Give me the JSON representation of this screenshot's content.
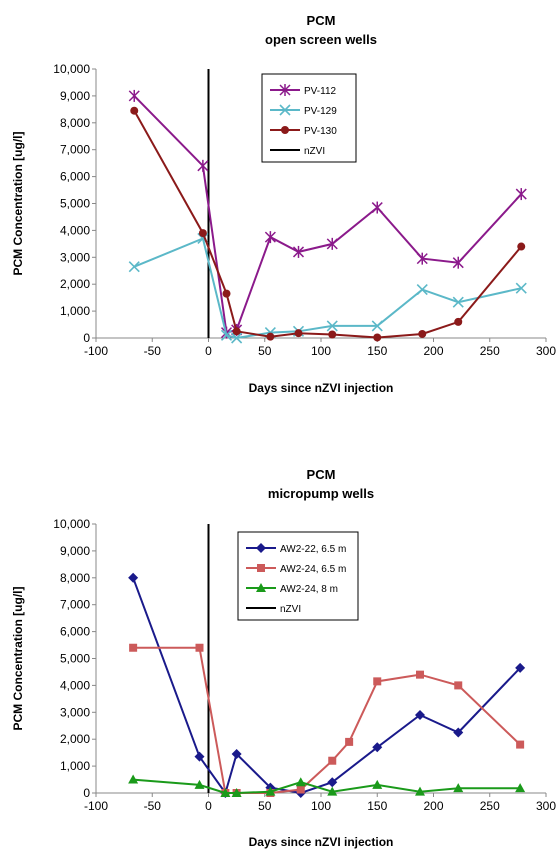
{
  "chart_data": [
    {
      "type": "line",
      "title": "PCM",
      "subtitle": "open screen wells",
      "xlabel": "Days since nZVI injection",
      "ylabel": "PCM Concentration  [ug/l]",
      "xlim": [
        -100,
        300
      ],
      "ylim": [
        0,
        10000
      ],
      "x_ticks": [
        "-100",
        "-50",
        "0",
        "50",
        "100",
        "150",
        "200",
        "250",
        "300"
      ],
      "y_ticks": [
        "0",
        "1,000",
        "2,000",
        "3,000",
        "4,000",
        "5,000",
        "6,000",
        "7,000",
        "8,000",
        "9,000",
        "10,000"
      ],
      "legend_position": "top-center",
      "grid": false,
      "vline": {
        "x": 0,
        "name": "nZVI",
        "color": "#000000"
      },
      "series": [
        {
          "name": "PV-112",
          "color": "#8B1A8B",
          "marker": "star",
          "x": [
            -66,
            -5,
            16,
            25,
            55,
            80,
            110,
            150,
            190,
            222,
            278
          ],
          "y": [
            9000,
            6400,
            200,
            300,
            3750,
            3200,
            3500,
            4850,
            2950,
            2800,
            5350
          ]
        },
        {
          "name": "PV-129",
          "color": "#5BB8C8",
          "marker": "x",
          "x": [
            -66,
            -5,
            16,
            25,
            55,
            80,
            110,
            150,
            190,
            222,
            278
          ],
          "y": [
            2650,
            3700,
            100,
            0,
            200,
            250,
            450,
            450,
            1800,
            1330,
            1850
          ]
        },
        {
          "name": "PV-130",
          "color": "#8B1A1A",
          "marker": "circle",
          "x": [
            -66,
            -5,
            16,
            25,
            55,
            80,
            110,
            150,
            190,
            222,
            278
          ],
          "y": [
            8450,
            3900,
            1650,
            250,
            50,
            180,
            130,
            20,
            150,
            600,
            3400
          ]
        }
      ]
    },
    {
      "type": "line",
      "title": "PCM",
      "subtitle": "micropump wells",
      "xlabel": "Days since nZVI injection",
      "ylabel": "PCM Concentration  [ug/l]",
      "xlim": [
        -100,
        300
      ],
      "ylim": [
        0,
        10000
      ],
      "x_ticks": [
        "-100",
        "-50",
        "0",
        "50",
        "100",
        "150",
        "200",
        "250",
        "300"
      ],
      "y_ticks": [
        "0",
        "1,000",
        "2,000",
        "3,000",
        "4,000",
        "5,000",
        "6,000",
        "7,000",
        "8,000",
        "9,000",
        "10,000"
      ],
      "legend_position": "top-center",
      "grid": false,
      "vline": {
        "x": 0,
        "name": "nZVI",
        "color": "#000000"
      },
      "series": [
        {
          "name": "AW2-22, 6.5 m",
          "color": "#1A1A8B",
          "marker": "diamond",
          "x": [
            -67,
            -8,
            15,
            25,
            55,
            82,
            110,
            150,
            188,
            222,
            277
          ],
          "y": [
            8000,
            1350,
            0,
            1450,
            200,
            0,
            400,
            1700,
            2900,
            2250,
            4650
          ]
        },
        {
          "name": "AW2-24, 6.5 m",
          "color": "#CC5A5A",
          "marker": "square",
          "x": [
            -67,
            -8,
            15,
            25,
            55,
            82,
            110,
            125,
            150,
            188,
            222,
            277
          ],
          "y": [
            5400,
            5400,
            0,
            0,
            0,
            130,
            1200,
            1900,
            4150,
            4400,
            4000,
            1800
          ]
        },
        {
          "name": "AW2-24, 8 m",
          "color": "#1A9A1A",
          "marker": "triangle",
          "x": [
            -67,
            -8,
            15,
            25,
            55,
            82,
            110,
            150,
            188,
            222,
            277
          ],
          "y": [
            500,
            300,
            0,
            0,
            50,
            400,
            50,
            300,
            50,
            180,
            180
          ]
        }
      ]
    }
  ]
}
